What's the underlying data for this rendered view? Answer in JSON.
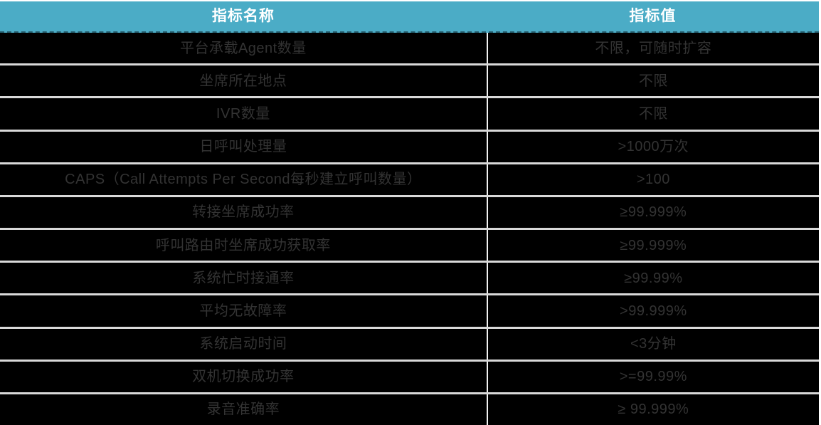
{
  "table": {
    "columns": [
      {
        "label": "指标名称"
      },
      {
        "label": "指标值"
      }
    ],
    "rows": [
      {
        "name": "平台承载Agent数量",
        "value": "不限，可随时扩容"
      },
      {
        "name": "坐席所在地点",
        "value": "不限"
      },
      {
        "name": "IVR数量",
        "value": "不限"
      },
      {
        "name": "日呼叫处理量",
        "value": ">1000万次"
      },
      {
        "name": "CAPS（Call Attempts Per Second每秒建立呼叫数量）",
        "value": ">100"
      },
      {
        "name": "转接坐席成功率",
        "value": "≥99.999%"
      },
      {
        "name": "呼叫路由时坐席成功获取率",
        "value": "≥99.999%"
      },
      {
        "name": "系统忙时接通率",
        "value": "≥99.99%"
      },
      {
        "name": "平均无故障率",
        "value": ">99.999%"
      },
      {
        "name": "系统启动时间",
        "value": "<3分钟"
      },
      {
        "name": "双机切换成功率",
        "value": ">=99.99%"
      },
      {
        "name": "录音准确率",
        "value": "≥ 99.999%"
      }
    ]
  },
  "colors": {
    "header_bg": "#4BACC6",
    "header_text": "#FFFFFF",
    "row_bg": "#000000",
    "row_text": "#333333",
    "separator": "#D9D9D9",
    "divider": "#F2F2F2"
  }
}
